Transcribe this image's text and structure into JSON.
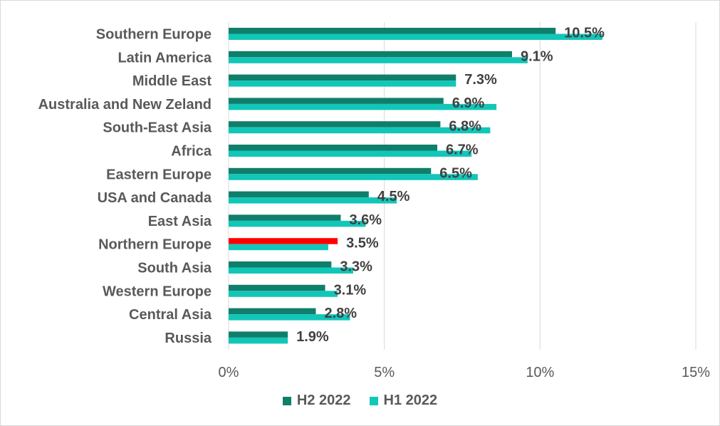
{
  "chart_data": {
    "type": "bar",
    "orientation": "horizontal",
    "categories": [
      "Southern Europe",
      "Latin America",
      "Middle East",
      "Australia and New Zeland",
      "South-East Asia",
      "Africa",
      "Eastern Europe",
      "USA and Canada",
      "East Asia",
      "Northern Europe",
      "South Asia",
      "Western Europe",
      "Central Asia",
      "Russia"
    ],
    "series": [
      {
        "name": "H2 2022",
        "color": "#0f7f6b",
        "values": [
          10.5,
          9.1,
          7.3,
          6.9,
          6.8,
          6.7,
          6.5,
          4.5,
          3.6,
          3.5,
          3.3,
          3.1,
          2.8,
          1.9
        ]
      },
      {
        "name": "H1 2022",
        "color": "#12c6b8",
        "values": [
          12.0,
          9.6,
          7.3,
          8.6,
          8.4,
          7.8,
          8.0,
          5.4,
          4.4,
          3.2,
          4.0,
          3.5,
          3.9,
          1.9
        ]
      }
    ],
    "data_labels": [
      "10.5%",
      "9.1%",
      "7.3%",
      "6.9%",
      "6.8%",
      "6.7%",
      "6.5%",
      "4.5%",
      "3.6%",
      "3.5%",
      "3.3%",
      "3.1%",
      "2.8%",
      "1.9%"
    ],
    "highlight": {
      "category": "Northern Europe",
      "series": "H2 2022",
      "color": "#ff0000"
    },
    "xlim": [
      0,
      15
    ],
    "xticks": [
      0,
      5,
      10,
      15
    ],
    "xtick_labels": [
      "0%",
      "5%",
      "10%",
      "15%"
    ],
    "grid": true,
    "legend_position": "bottom"
  }
}
